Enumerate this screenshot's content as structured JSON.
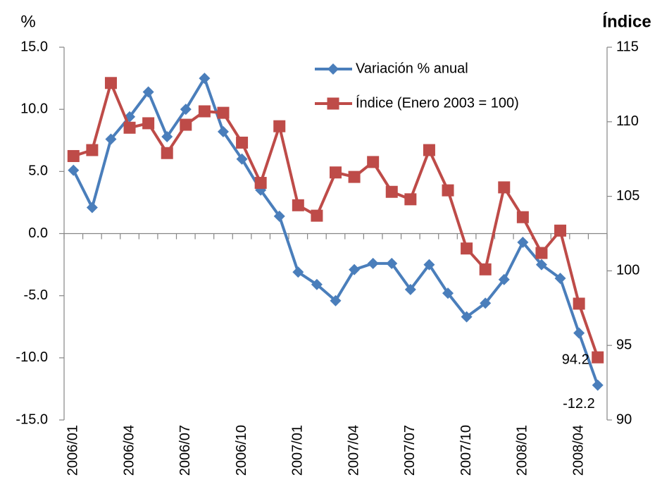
{
  "chart_data": {
    "type": "line",
    "y_label": "%",
    "y2_label": "Índice",
    "categories": [
      "2006/01",
      null,
      null,
      "2006/04",
      null,
      null,
      "2006/07",
      null,
      null,
      "2006/10",
      null,
      null,
      "2007/01",
      null,
      null,
      "2007/04",
      null,
      null,
      "2007/07",
      null,
      null,
      "2007/10",
      null,
      null,
      "2008/01",
      null,
      null,
      "2008/04",
      null
    ],
    "series": [
      {
        "name": "Variación % anual",
        "color": "#4a7ebb",
        "marker": "diamond",
        "values": [
          5.1,
          2.1,
          7.6,
          9.4,
          11.4,
          7.8,
          10.0,
          12.5,
          8.2,
          6.0,
          3.5,
          1.4,
          -3.1,
          -4.1,
          -5.4,
          -2.9,
          -2.4,
          -2.4,
          -4.5,
          -2.5,
          -4.8,
          -6.7,
          -5.6,
          -3.7,
          -0.7,
          -2.5,
          -3.6,
          -8.0,
          -12.2
        ],
        "value_labels": [
          null,
          null,
          null,
          null,
          null,
          null,
          null,
          null,
          null,
          null,
          null,
          null,
          null,
          null,
          null,
          null,
          null,
          null,
          null,
          null,
          null,
          null,
          null,
          null,
          null,
          null,
          null,
          null,
          "-12.2"
        ]
      },
      {
        "name": "Índice (Enero 2003 = 100)",
        "color": "#be4b48",
        "marker": "square",
        "axis": "y2",
        "values": [
          107.7,
          108.1,
          112.6,
          109.6,
          109.9,
          107.9,
          109.8,
          110.7,
          110.6,
          108.6,
          105.9,
          109.7,
          104.4,
          103.7,
          106.6,
          106.3,
          107.3,
          105.3,
          104.8,
          108.1,
          105.4,
          101.5,
          100.1,
          105.6,
          103.6,
          101.2,
          102.7,
          97.8,
          94.2
        ],
        "value_labels": [
          null,
          null,
          null,
          null,
          null,
          null,
          null,
          null,
          null,
          null,
          null,
          null,
          null,
          null,
          null,
          null,
          null,
          null,
          null,
          null,
          null,
          null,
          null,
          null,
          null,
          null,
          null,
          null,
          "94.2"
        ]
      }
    ],
    "ylim": [
      -15,
      15
    ],
    "yticks": [
      {
        "value": -15,
        "label": "-15.0"
      },
      {
        "value": -10,
        "label": "-10.0"
      },
      {
        "value": -5,
        "label": "-5.0"
      },
      {
        "value": 0,
        "label": "0.0"
      },
      {
        "value": 5,
        "label": "5.0"
      },
      {
        "value": 10,
        "label": "10.0"
      },
      {
        "value": 15,
        "label": "15.0"
      }
    ],
    "y2lim": [
      90,
      115
    ],
    "y2ticks": [
      90,
      95,
      100,
      105,
      110,
      115
    ],
    "grid": false
  }
}
